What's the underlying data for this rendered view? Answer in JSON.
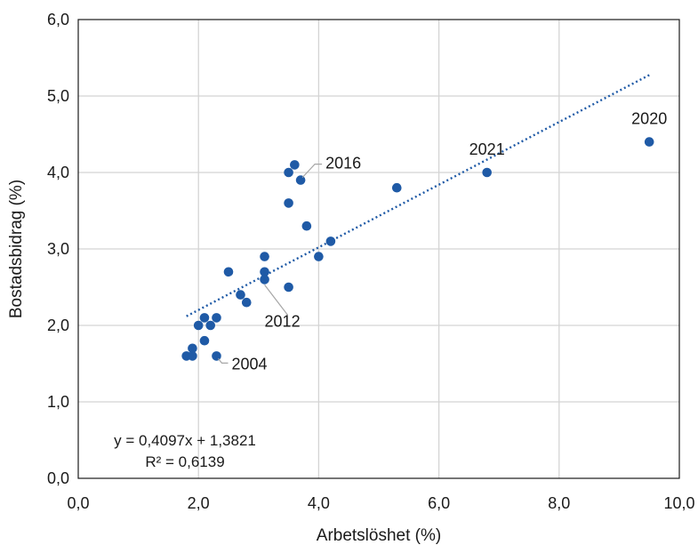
{
  "chart_data": {
    "type": "scatter",
    "title": "",
    "xlabel": "Arbetslöshet (%)",
    "ylabel": "Bostadsbidrag (%)",
    "xlim": [
      0,
      10
    ],
    "ylim": [
      0,
      6
    ],
    "x_ticks": [
      "0,0",
      "2,0",
      "4,0",
      "6,0",
      "8,0",
      "10,0"
    ],
    "y_ticks": [
      "0,0",
      "1,0",
      "2,0",
      "3,0",
      "4,0",
      "5,0",
      "6,0"
    ],
    "grid": true,
    "legend": "none",
    "series": [
      {
        "color": "#1f5aa6",
        "points": [
          {
            "x": 1.8,
            "y": 1.6
          },
          {
            "x": 1.9,
            "y": 1.6
          },
          {
            "x": 1.9,
            "y": 1.7
          },
          {
            "x": 2.0,
            "y": 2.0
          },
          {
            "x": 2.1,
            "y": 2.1
          },
          {
            "x": 2.1,
            "y": 1.8
          },
          {
            "x": 2.2,
            "y": 2.0
          },
          {
            "x": 2.3,
            "y": 2.1
          },
          {
            "x": 2.3,
            "y": 1.6
          },
          {
            "x": 2.5,
            "y": 2.7
          },
          {
            "x": 2.7,
            "y": 2.4
          },
          {
            "x": 2.8,
            "y": 2.3
          },
          {
            "x": 3.1,
            "y": 2.9
          },
          {
            "x": 3.1,
            "y": 2.7
          },
          {
            "x": 3.1,
            "y": 2.6
          },
          {
            "x": 3.5,
            "y": 2.5
          },
          {
            "x": 3.5,
            "y": 3.6
          },
          {
            "x": 3.5,
            "y": 4.0
          },
          {
            "x": 3.6,
            "y": 4.1
          },
          {
            "x": 3.7,
            "y": 3.9
          },
          {
            "x": 3.8,
            "y": 3.3
          },
          {
            "x": 4.0,
            "y": 2.9
          },
          {
            "x": 4.2,
            "y": 3.1
          },
          {
            "x": 5.3,
            "y": 3.8
          },
          {
            "x": 6.8,
            "y": 4.0
          },
          {
            "x": 9.5,
            "y": 4.4
          }
        ]
      }
    ],
    "trendline": {
      "type": "linear",
      "slope": 0.4097,
      "intercept": 1.3821,
      "x_range": [
        1.8,
        9.5
      ],
      "color": "#1f5aa6",
      "style": "dotted"
    },
    "annotations": [
      {
        "label": "2020",
        "x": 9.5,
        "y": 4.4
      },
      {
        "label": "2021",
        "x": 6.8,
        "y": 4.0
      },
      {
        "label": "2016",
        "x": 3.7,
        "y": 3.9
      },
      {
        "label": "2012",
        "x": 3.1,
        "y": 2.6
      },
      {
        "label": "2004",
        "x": 2.3,
        "y": 1.6
      }
    ],
    "equation_text": "y = 0,4097x + 1,3821",
    "r2_text": "R² = 0,6139"
  }
}
